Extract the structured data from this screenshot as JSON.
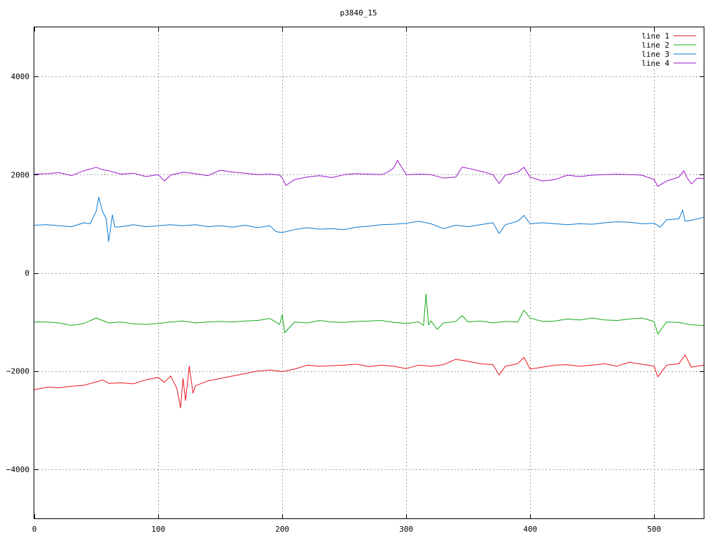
{
  "chart_data": {
    "type": "line",
    "title": "p3840_15",
    "xlabel": "",
    "ylabel": "",
    "xlim": [
      0,
      540
    ],
    "ylim": [
      -5000,
      5000
    ],
    "x_ticks": [
      0,
      100,
      200,
      300,
      400,
      500
    ],
    "y_ticks": [
      -4000,
      -2000,
      0,
      2000,
      4000
    ],
    "x_tick_labels": [
      "0",
      "100",
      "200",
      "300",
      "400",
      "500"
    ],
    "y_tick_labels": [
      "−4000",
      "−2000",
      "0",
      "2000",
      "4000"
    ],
    "grid": true,
    "legend_position": "top-right",
    "series": [
      {
        "name": "line 1",
        "color": "#e8141a",
        "x": [
          0,
          10,
          20,
          30,
          40,
          50,
          55,
          60,
          70,
          80,
          90,
          100,
          105,
          110,
          115,
          118,
          120,
          122,
          125,
          128,
          130,
          135,
          140,
          150,
          160,
          170,
          180,
          190,
          200,
          210,
          220,
          230,
          240,
          250,
          260,
          270,
          280,
          290,
          300,
          310,
          320,
          330,
          340,
          350,
          360,
          370,
          375,
          380,
          390,
          395,
          400,
          410,
          420,
          430,
          440,
          450,
          460,
          470,
          480,
          490,
          500,
          503,
          510,
          520,
          525,
          530,
          540
        ],
        "y": [
          -2380,
          -2330,
          -2340,
          -2310,
          -2290,
          -2220,
          -2180,
          -2250,
          -2240,
          -2260,
          -2180,
          -2130,
          -2230,
          -2100,
          -2350,
          -2750,
          -2150,
          -2600,
          -1900,
          -2450,
          -2300,
          -2250,
          -2200,
          -2150,
          -2100,
          -2050,
          -2000,
          -1980,
          -2010,
          -1960,
          -1880,
          -1900,
          -1890,
          -1880,
          -1860,
          -1910,
          -1880,
          -1900,
          -1950,
          -1880,
          -1900,
          -1870,
          -1760,
          -1800,
          -1850,
          -1870,
          -2080,
          -1900,
          -1850,
          -1720,
          -1960,
          -1920,
          -1880,
          -1870,
          -1900,
          -1880,
          -1850,
          -1900,
          -1820,
          -1860,
          -1900,
          -2120,
          -1880,
          -1850,
          -1670,
          -1920,
          -1880
        ]
      },
      {
        "name": "line 2",
        "color": "#16a816",
        "x": [
          0,
          10,
          20,
          30,
          40,
          50,
          60,
          70,
          80,
          90,
          100,
          110,
          120,
          130,
          140,
          150,
          160,
          170,
          180,
          190,
          198,
          200,
          202,
          210,
          220,
          230,
          240,
          250,
          260,
          270,
          280,
          290,
          300,
          310,
          314,
          316,
          318,
          320,
          325,
          330,
          340,
          345,
          350,
          360,
          370,
          380,
          390,
          395,
          400,
          410,
          420,
          430,
          440,
          450,
          460,
          470,
          480,
          490,
          500,
          503,
          510,
          520,
          530,
          540
        ],
        "y": [
          -1000,
          -1000,
          -1020,
          -1070,
          -1030,
          -920,
          -1020,
          -1000,
          -1040,
          -1050,
          -1030,
          -1000,
          -980,
          -1020,
          -1000,
          -990,
          -1000,
          -980,
          -970,
          -930,
          -1050,
          -850,
          -1220,
          -1000,
          -1020,
          -970,
          -1000,
          -1010,
          -990,
          -980,
          -970,
          -1010,
          -1030,
          -1000,
          -1070,
          -430,
          -1060,
          -980,
          -1150,
          -1020,
          -990,
          -870,
          -1000,
          -980,
          -1020,
          -990,
          -1000,
          -760,
          -920,
          -990,
          -980,
          -940,
          -960,
          -920,
          -960,
          -970,
          -940,
          -920,
          -990,
          -1250,
          -1000,
          -1010,
          -1060,
          -1070
        ]
      },
      {
        "name": "line 3",
        "color": "#0a78d0",
        "x": [
          0,
          10,
          20,
          30,
          40,
          45,
          50,
          52,
          55,
          58,
          60,
          63,
          65,
          70,
          80,
          90,
          100,
          110,
          120,
          130,
          140,
          150,
          160,
          170,
          180,
          190,
          195,
          200,
          210,
          220,
          230,
          240,
          250,
          260,
          270,
          280,
          290,
          300,
          310,
          320,
          330,
          340,
          350,
          360,
          370,
          375,
          380,
          390,
          395,
          400,
          410,
          420,
          430,
          440,
          450,
          460,
          470,
          480,
          490,
          500,
          505,
          510,
          520,
          523,
          525,
          530,
          540
        ],
        "y": [
          970,
          980,
          960,
          940,
          1020,
          1000,
          1260,
          1540,
          1250,
          1100,
          640,
          1180,
          930,
          940,
          980,
          940,
          960,
          980,
          960,
          980,
          940,
          960,
          930,
          970,
          920,
          960,
          840,
          820,
          880,
          920,
          890,
          900,
          880,
          930,
          950,
          980,
          990,
          1010,
          1050,
          1000,
          900,
          970,
          940,
          980,
          1020,
          800,
          980,
          1050,
          1170,
          1000,
          1020,
          1000,
          980,
          1000,
          990,
          1020,
          1040,
          1030,
          1000,
          1010,
          930,
          1080,
          1100,
          1280,
          1050,
          1070,
          1130
        ]
      },
      {
        "name": "line 4",
        "color": "#9a14c8",
        "x": [
          0,
          10,
          20,
          30,
          40,
          50,
          55,
          60,
          70,
          80,
          90,
          100,
          105,
          110,
          120,
          130,
          140,
          150,
          160,
          170,
          180,
          190,
          198,
          200,
          203,
          210,
          220,
          230,
          240,
          250,
          260,
          270,
          280,
          285,
          290,
          293,
          300,
          310,
          320,
          330,
          340,
          345,
          350,
          360,
          370,
          375,
          380,
          390,
          395,
          400,
          410,
          420,
          430,
          440,
          450,
          460,
          470,
          480,
          490,
          500,
          503,
          510,
          520,
          524,
          526,
          530,
          535,
          540
        ],
        "y": [
          2010,
          2020,
          2040,
          1980,
          2080,
          2150,
          2100,
          2080,
          2010,
          2030,
          1960,
          2000,
          1870,
          1990,
          2050,
          2020,
          1980,
          2090,
          2050,
          2030,
          2000,
          2010,
          1990,
          1930,
          1780,
          1900,
          1950,
          1980,
          1940,
          2000,
          2020,
          2010,
          2000,
          2050,
          2140,
          2290,
          2000,
          2010,
          2000,
          1930,
          1950,
          2150,
          2130,
          2070,
          2000,
          1820,
          1990,
          2050,
          2150,
          1950,
          1870,
          1900,
          1990,
          1960,
          1990,
          2000,
          2010,
          2000,
          1990,
          1900,
          1760,
          1870,
          1950,
          2080,
          1960,
          1810,
          1930,
          1920
        ]
      }
    ]
  }
}
